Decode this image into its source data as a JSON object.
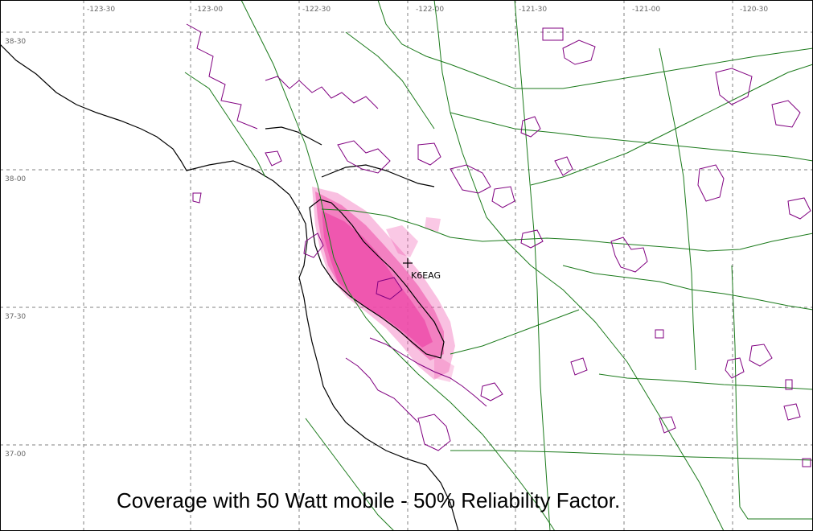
{
  "map": {
    "longitude_ticks": [
      "-123-30",
      "-123-00",
      "-122-30",
      "-122-00",
      "-121-30",
      "-121-00",
      "-120-30"
    ],
    "latitude_ticks": [
      "38-30",
      "38-00",
      "37-30",
      "37-00"
    ],
    "station": {
      "callsign": "K6EAG",
      "lat": "37-40",
      "lon": "-122-00"
    },
    "caption": "Coverage with 50 Watt mobile - 50% Reliability Factor.",
    "colors": {
      "coverage": "#ee4aa8",
      "roads": "#1b7a1b",
      "boundaries": "#800080",
      "coastline": "#000000",
      "grid": "#808080"
    },
    "coverage": {
      "transmit_power": "50 Watt",
      "reliability": "50%"
    }
  }
}
